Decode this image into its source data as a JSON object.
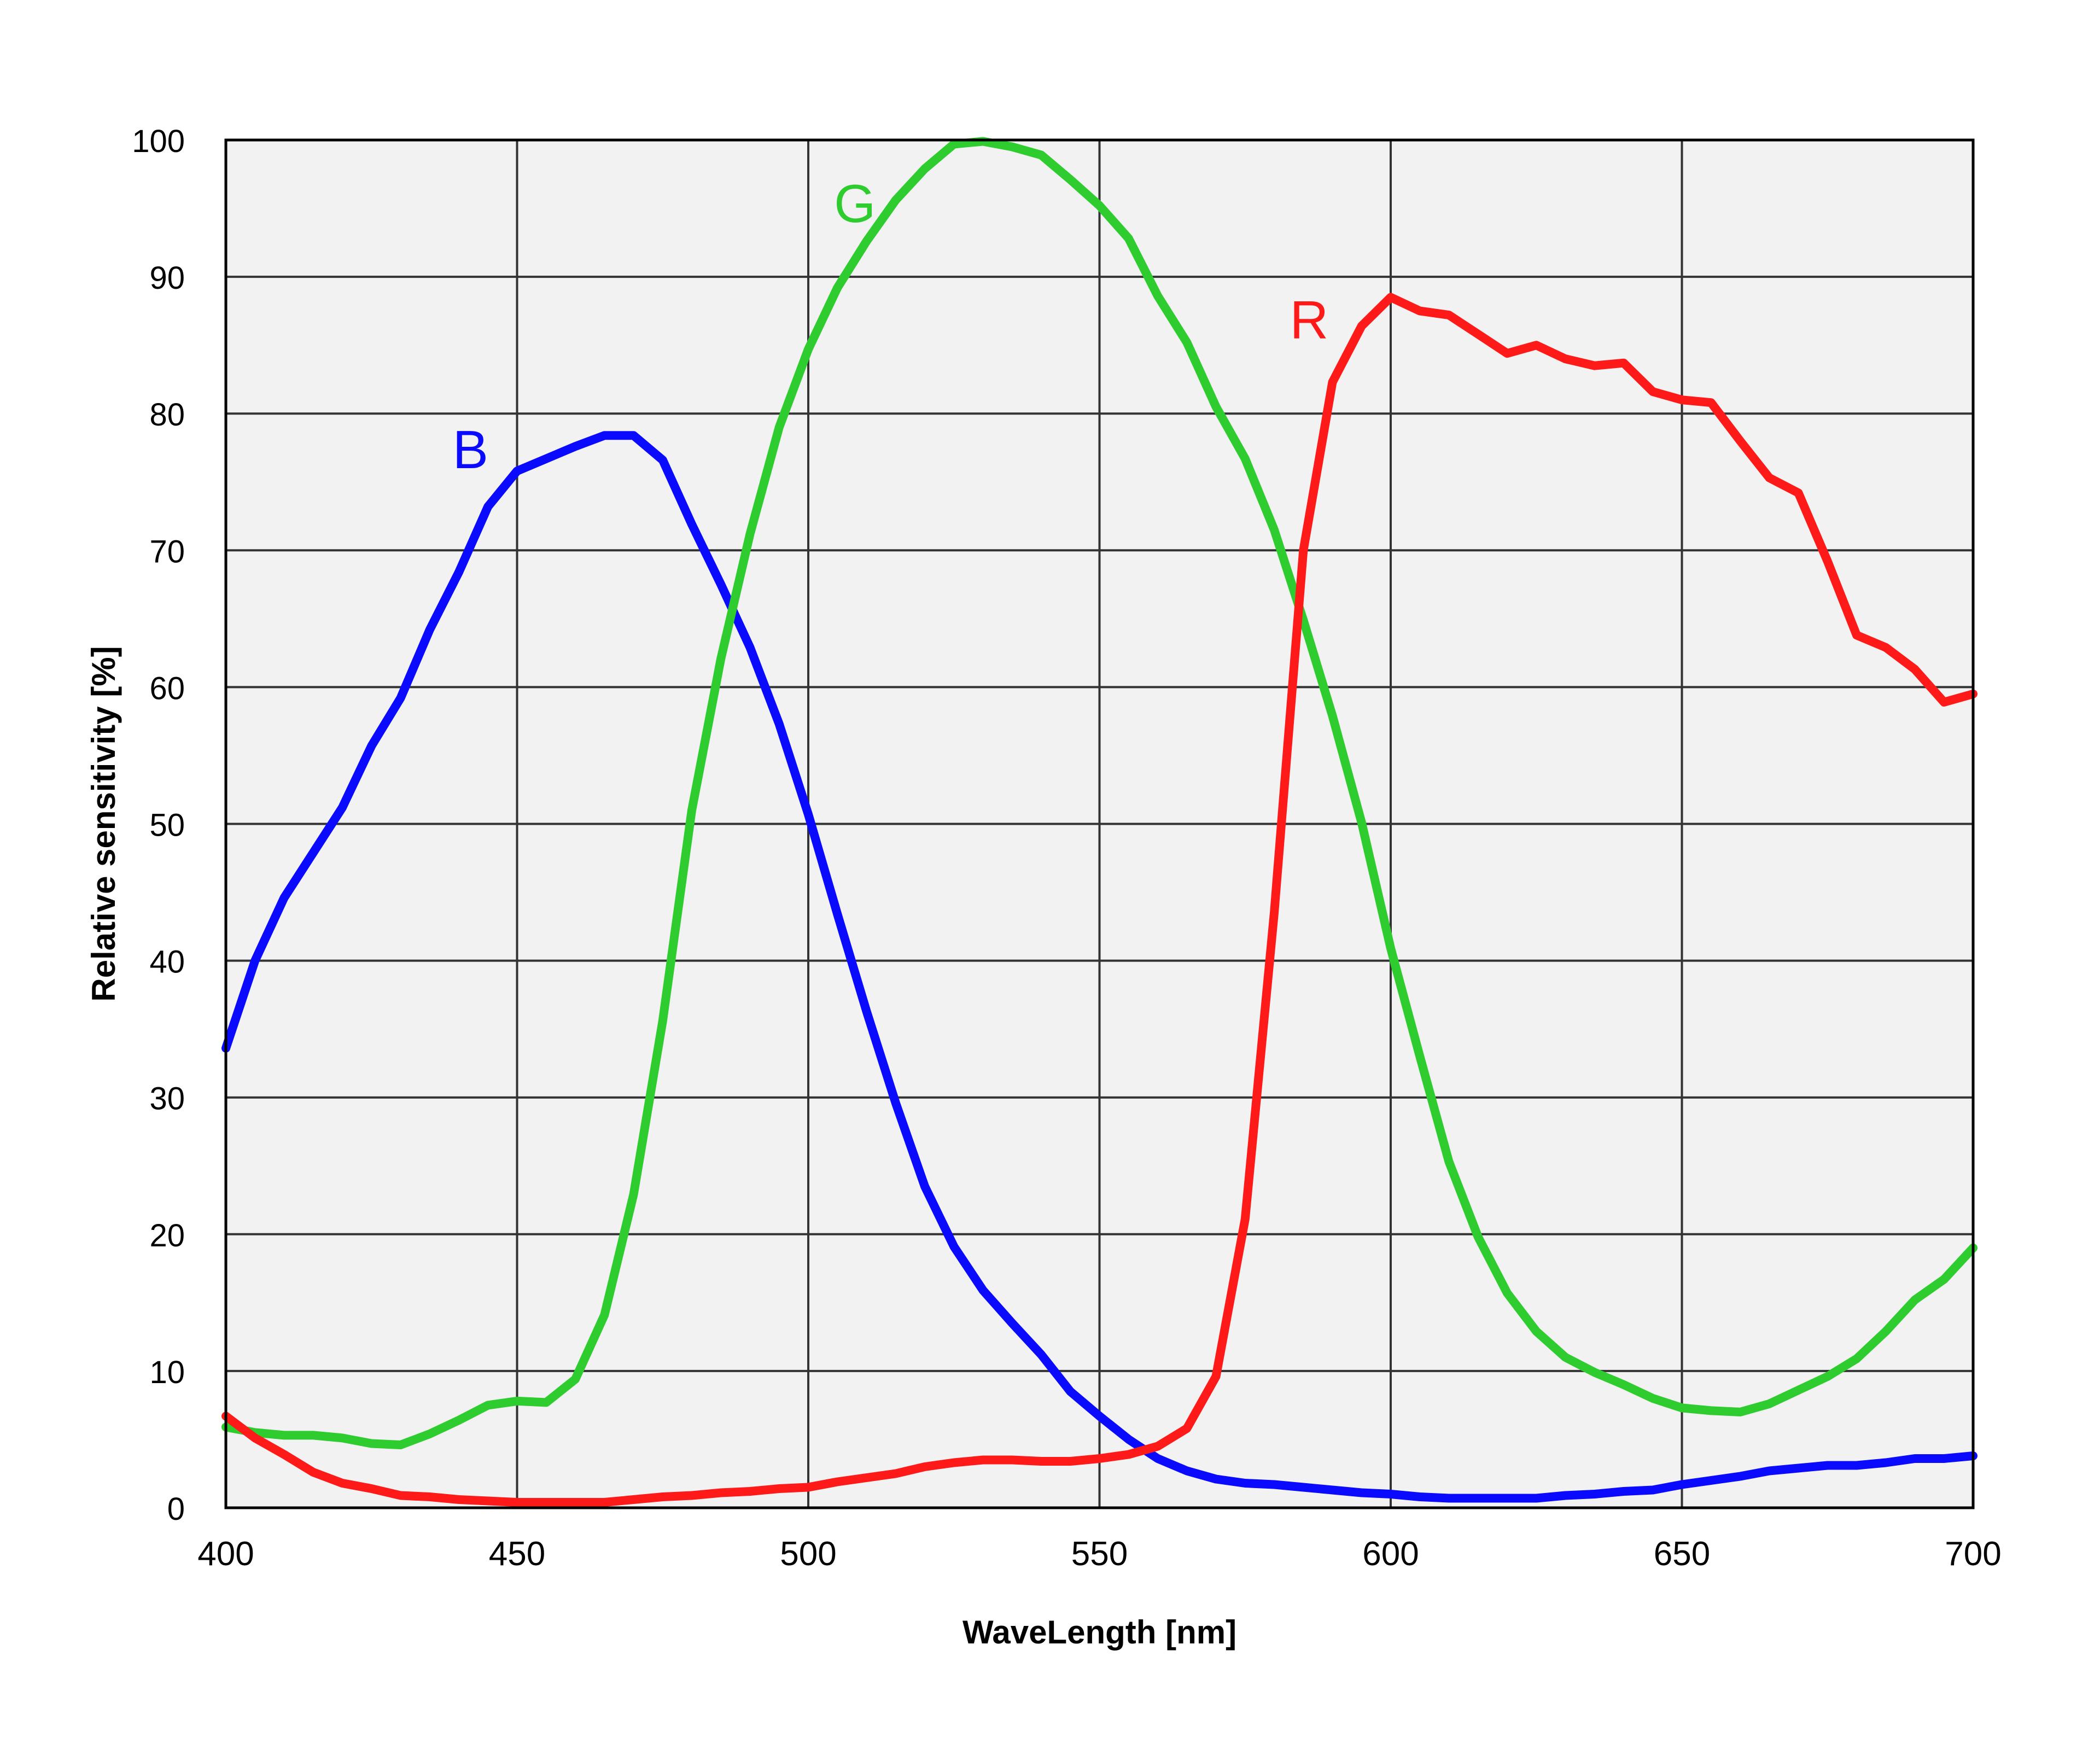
{
  "chart_data": {
    "type": "line",
    "xlabel": "WaveLength [nm]",
    "ylabel": "Relative sensitivity [%]",
    "xlim": [
      400,
      700
    ],
    "ylim": [
      0,
      100
    ],
    "xticks": [
      400,
      450,
      500,
      550,
      600,
      650,
      700
    ],
    "yticks": [
      0,
      10,
      20,
      30,
      40,
      50,
      60,
      70,
      80,
      90,
      100
    ],
    "grid": true,
    "plot_background": "#f2f2f2",
    "series": [
      {
        "name": "B",
        "color": "#0a0aff",
        "label_at": [
          442,
          76
        ],
        "points": [
          [
            400,
            33.6
          ],
          [
            405,
            40
          ],
          [
            410,
            44.6
          ],
          [
            415,
            47.9
          ],
          [
            420,
            51.2
          ],
          [
            425,
            55.7
          ],
          [
            430,
            59.2
          ],
          [
            435,
            64.2
          ],
          [
            440,
            68.4
          ],
          [
            445,
            73.2
          ],
          [
            450,
            75.8
          ],
          [
            455,
            76.7
          ],
          [
            460,
            77.6
          ],
          [
            465,
            78.4
          ],
          [
            470,
            78.4
          ],
          [
            475,
            76.6
          ],
          [
            480,
            71.9
          ],
          [
            485,
            67.5
          ],
          [
            490,
            62.9
          ],
          [
            495,
            57.3
          ],
          [
            500,
            50.7
          ],
          [
            505,
            43.4
          ],
          [
            510,
            36.3
          ],
          [
            515,
            29.6
          ],
          [
            520,
            23.5
          ],
          [
            525,
            19.1
          ],
          [
            530,
            15.9
          ],
          [
            535,
            13.5
          ],
          [
            540,
            11.2
          ],
          [
            545,
            8.5
          ],
          [
            550,
            6.7
          ],
          [
            555,
            5.0
          ],
          [
            560,
            3.6
          ],
          [
            565,
            2.7
          ],
          [
            570,
            2.1
          ],
          [
            575,
            1.8
          ],
          [
            580,
            1.7
          ],
          [
            585,
            1.5
          ],
          [
            590,
            1.3
          ],
          [
            595,
            1.1
          ],
          [
            600,
            1.0
          ],
          [
            605,
            0.8
          ],
          [
            610,
            0.7
          ],
          [
            615,
            0.7
          ],
          [
            620,
            0.7
          ],
          [
            625,
            0.7
          ],
          [
            630,
            0.9
          ],
          [
            635,
            1.0
          ],
          [
            640,
            1.2
          ],
          [
            645,
            1.3
          ],
          [
            650,
            1.7
          ],
          [
            655,
            2.0
          ],
          [
            660,
            2.3
          ],
          [
            665,
            2.7
          ],
          [
            670,
            2.9
          ],
          [
            675,
            3.1
          ],
          [
            680,
            3.1
          ],
          [
            685,
            3.3
          ],
          [
            690,
            3.6
          ],
          [
            695,
            3.6
          ],
          [
            700,
            3.8
          ]
        ]
      },
      {
        "name": "G",
        "color": "#2fcc2f",
        "label_at": [
          508,
          94
        ],
        "points": [
          [
            400,
            5.9
          ],
          [
            405,
            5.5
          ],
          [
            410,
            5.3
          ],
          [
            415,
            5.3
          ],
          [
            420,
            5.1
          ],
          [
            425,
            4.7
          ],
          [
            430,
            4.6
          ],
          [
            435,
            5.4
          ],
          [
            440,
            6.4
          ],
          [
            445,
            7.5
          ],
          [
            450,
            7.8
          ],
          [
            455,
            7.7
          ],
          [
            460,
            9.4
          ],
          [
            465,
            14.1
          ],
          [
            470,
            22.9
          ],
          [
            475,
            35.6
          ],
          [
            480,
            51.0
          ],
          [
            485,
            62.1
          ],
          [
            490,
            71.2
          ],
          [
            495,
            79.0
          ],
          [
            500,
            84.7
          ],
          [
            505,
            89.2
          ],
          [
            510,
            92.6
          ],
          [
            515,
            95.6
          ],
          [
            520,
            97.9
          ],
          [
            525,
            99.7
          ],
          [
            530,
            99.9
          ],
          [
            535,
            99.5
          ],
          [
            540,
            98.9
          ],
          [
            545,
            97.1
          ],
          [
            550,
            95.2
          ],
          [
            555,
            92.8
          ],
          [
            560,
            88.6
          ],
          [
            565,
            85.2
          ],
          [
            570,
            80.5
          ],
          [
            575,
            76.7
          ],
          [
            580,
            71.5
          ],
          [
            585,
            64.9
          ],
          [
            590,
            57.9
          ],
          [
            595,
            50.1
          ],
          [
            600,
            40.9
          ],
          [
            605,
            33.0
          ],
          [
            610,
            25.3
          ],
          [
            615,
            19.8
          ],
          [
            620,
            15.7
          ],
          [
            625,
            12.9
          ],
          [
            630,
            11.0
          ],
          [
            635,
            9.9
          ],
          [
            640,
            9.0
          ],
          [
            645,
            8.0
          ],
          [
            650,
            7.3
          ],
          [
            655,
            7.1
          ],
          [
            660,
            7.0
          ],
          [
            665,
            7.6
          ],
          [
            670,
            8.6
          ],
          [
            675,
            9.6
          ],
          [
            680,
            10.9
          ],
          [
            685,
            12.9
          ],
          [
            690,
            15.2
          ],
          [
            695,
            16.7
          ],
          [
            700,
            19.0
          ]
        ]
      },
      {
        "name": "R",
        "color": "#ff1a1a",
        "label_at": [
          586,
          85.5
        ],
        "points": [
          [
            400,
            6.7
          ],
          [
            405,
            5.1
          ],
          [
            410,
            3.9
          ],
          [
            415,
            2.6
          ],
          [
            420,
            1.8
          ],
          [
            425,
            1.4
          ],
          [
            430,
            0.9
          ],
          [
            435,
            0.8
          ],
          [
            440,
            0.6
          ],
          [
            445,
            0.5
          ],
          [
            450,
            0.4
          ],
          [
            455,
            0.4
          ],
          [
            460,
            0.4
          ],
          [
            465,
            0.4
          ],
          [
            470,
            0.6
          ],
          [
            475,
            0.8
          ],
          [
            480,
            0.9
          ],
          [
            485,
            1.1
          ],
          [
            490,
            1.2
          ],
          [
            495,
            1.4
          ],
          [
            500,
            1.5
          ],
          [
            505,
            1.9
          ],
          [
            510,
            2.2
          ],
          [
            515,
            2.5
          ],
          [
            520,
            3.0
          ],
          [
            525,
            3.3
          ],
          [
            530,
            3.5
          ],
          [
            535,
            3.5
          ],
          [
            540,
            3.4
          ],
          [
            545,
            3.4
          ],
          [
            550,
            3.6
          ],
          [
            555,
            3.9
          ],
          [
            560,
            4.5
          ],
          [
            565,
            5.8
          ],
          [
            570,
            9.6
          ],
          [
            575,
            21.1
          ],
          [
            580,
            43.5
          ],
          [
            585,
            70.0
          ],
          [
            590,
            82.3
          ],
          [
            595,
            86.4
          ],
          [
            600,
            88.5
          ],
          [
            605,
            87.5
          ],
          [
            610,
            87.2
          ],
          [
            615,
            85.8
          ],
          [
            620,
            84.4
          ],
          [
            625,
            85.0
          ],
          [
            630,
            84.0
          ],
          [
            635,
            83.5
          ],
          [
            640,
            83.7
          ],
          [
            645,
            81.6
          ],
          [
            650,
            81.0
          ],
          [
            655,
            80.8
          ],
          [
            660,
            78.0
          ],
          [
            665,
            75.3
          ],
          [
            670,
            74.2
          ],
          [
            675,
            69.2
          ],
          [
            680,
            63.8
          ],
          [
            685,
            62.9
          ],
          [
            690,
            61.3
          ],
          [
            695,
            58.9
          ],
          [
            700,
            59.5
          ]
        ]
      }
    ]
  }
}
